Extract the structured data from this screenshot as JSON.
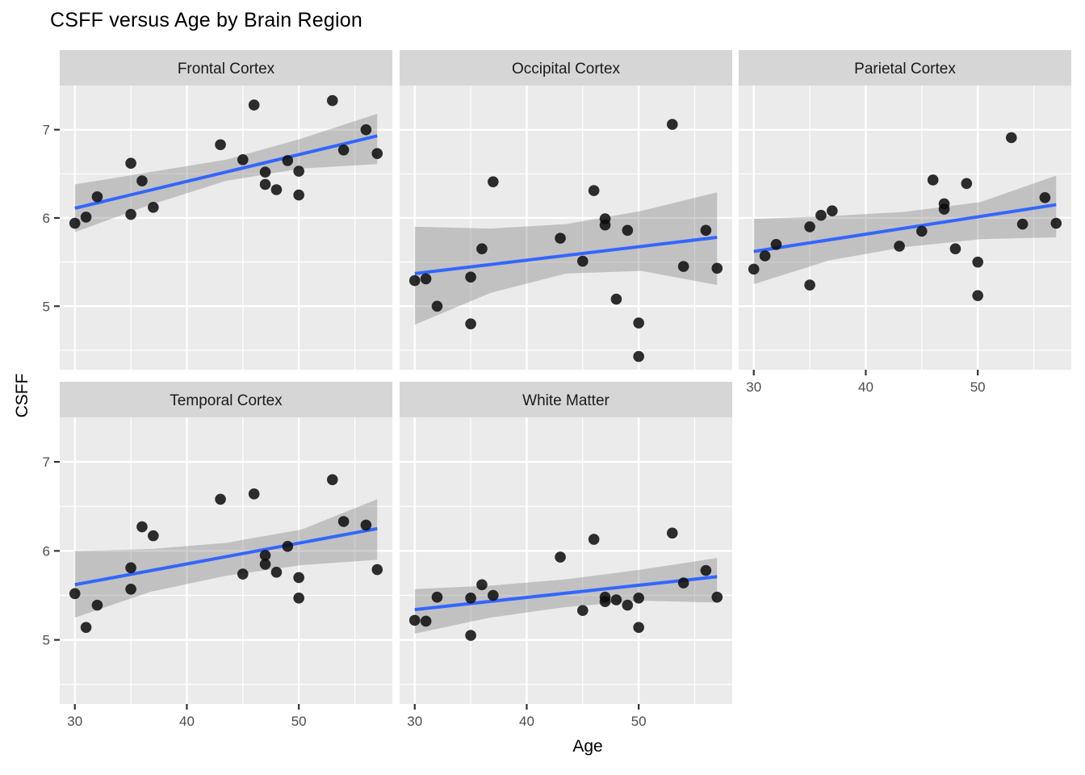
{
  "title": "CSFF versus Age by Brain Region",
  "chart_data": {
    "type": "scatter",
    "xlabel": "Age",
    "ylabel": "CSFF",
    "x_domain": [
      28.65,
      58.35
    ],
    "y_domain": [
      4.28,
      7.5
    ],
    "x_ticks": [
      30,
      40,
      50
    ],
    "y_ticks": [
      7,
      6,
      5
    ],
    "x_minor_ticks": [
      35,
      45,
      55
    ],
    "y_minor_ticks": [
      4.5,
      5.5,
      6.5
    ],
    "grid": true,
    "legend_position": "none",
    "colors": {
      "panel_bg": "#EBEBEB",
      "strip_bg": "#D6D6D6",
      "grid": "#FFFFFF",
      "point": "rgba(10,10,10,0.85)",
      "smooth_line": "#3366FF",
      "band_fill": "rgba(110,110,110,0.33)",
      "tick_text": "#4D4D4D",
      "tick_mark": "#333333",
      "strip_text": "#1A1A1A"
    },
    "facets": [
      {
        "label": "Frontal Cortex",
        "points": [
          [
            30,
            5.94
          ],
          [
            31,
            6.01
          ],
          [
            32,
            6.24
          ],
          [
            35,
            6.62
          ],
          [
            35,
            6.04
          ],
          [
            36,
            6.42
          ],
          [
            37,
            6.12
          ],
          [
            43,
            6.83
          ],
          [
            45,
            6.66
          ],
          [
            46,
            7.28
          ],
          [
            47,
            6.52
          ],
          [
            47,
            6.38
          ],
          [
            48,
            6.32
          ],
          [
            49,
            6.65
          ],
          [
            50,
            6.53
          ],
          [
            50,
            6.26
          ],
          [
            53,
            7.33
          ],
          [
            54,
            6.77
          ],
          [
            56,
            7.0
          ],
          [
            57,
            6.73
          ]
        ],
        "smooth_line": {
          "x1": 30,
          "y1": 6.11,
          "x2": 57,
          "y2": 6.93
        },
        "band": [
          [
            30,
            5.84,
            6.38
          ],
          [
            36.75,
            6.15,
            6.52
          ],
          [
            43.5,
            6.42,
            6.66
          ],
          [
            50.25,
            6.56,
            6.9
          ],
          [
            57,
            6.61,
            7.18
          ]
        ]
      },
      {
        "label": "Occipital Cortex",
        "points": [
          [
            30,
            5.29
          ],
          [
            31,
            5.31
          ],
          [
            32,
            5.0
          ],
          [
            35,
            5.33
          ],
          [
            35,
            4.8
          ],
          [
            36,
            5.65
          ],
          [
            37,
            6.41
          ],
          [
            43,
            5.77
          ],
          [
            45,
            5.51
          ],
          [
            46,
            6.31
          ],
          [
            47,
            5.99
          ],
          [
            47,
            5.92
          ],
          [
            48,
            5.08
          ],
          [
            49,
            5.86
          ],
          [
            50,
            4.81
          ],
          [
            50,
            4.43
          ],
          [
            53,
            7.06
          ],
          [
            54,
            5.45
          ],
          [
            56,
            5.86
          ],
          [
            57,
            5.43
          ]
        ],
        "smooth_line": {
          "x1": 30,
          "y1": 5.37,
          "x2": 57,
          "y2": 5.78
        },
        "band": [
          [
            30,
            4.79,
            5.9
          ],
          [
            36.75,
            5.15,
            5.88
          ],
          [
            43.5,
            5.37,
            5.93
          ],
          [
            50.25,
            5.4,
            6.08
          ],
          [
            57,
            5.24,
            6.29
          ]
        ]
      },
      {
        "label": "Parietal Cortex",
        "points": [
          [
            30,
            5.42
          ],
          [
            31,
            5.57
          ],
          [
            32,
            5.7
          ],
          [
            35,
            5.9
          ],
          [
            35,
            5.24
          ],
          [
            36,
            6.03
          ],
          [
            37,
            6.08
          ],
          [
            43,
            5.68
          ],
          [
            45,
            5.85
          ],
          [
            46,
            6.43
          ],
          [
            47,
            6.16
          ],
          [
            47,
            6.1
          ],
          [
            48,
            5.65
          ],
          [
            49,
            6.39
          ],
          [
            50,
            5.5
          ],
          [
            50,
            5.12
          ],
          [
            53,
            6.91
          ],
          [
            54,
            5.93
          ],
          [
            56,
            6.23
          ],
          [
            57,
            5.94
          ]
        ],
        "smooth_line": {
          "x1": 30,
          "y1": 5.62,
          "x2": 57,
          "y2": 6.15
        },
        "band": [
          [
            30,
            5.25,
            5.99
          ],
          [
            36.75,
            5.52,
            6.02
          ],
          [
            43.5,
            5.67,
            6.07
          ],
          [
            50.25,
            5.76,
            6.18
          ],
          [
            57,
            5.78,
            6.48
          ]
        ]
      },
      {
        "label": "Temporal Cortex",
        "points": [
          [
            30,
            5.52
          ],
          [
            31,
            5.14
          ],
          [
            32,
            5.39
          ],
          [
            35,
            5.81
          ],
          [
            35,
            5.57
          ],
          [
            36,
            6.27
          ],
          [
            37,
            6.17
          ],
          [
            43,
            6.58
          ],
          [
            45,
            5.74
          ],
          [
            46,
            6.64
          ],
          [
            47,
            5.95
          ],
          [
            47,
            5.85
          ],
          [
            48,
            5.76
          ],
          [
            49,
            6.05
          ],
          [
            50,
            5.7
          ],
          [
            50,
            5.47
          ],
          [
            53,
            6.8
          ],
          [
            54,
            6.33
          ],
          [
            56,
            6.29
          ],
          [
            57,
            5.79
          ]
        ],
        "smooth_line": {
          "x1": 30,
          "y1": 5.62,
          "x2": 57,
          "y2": 6.25
        },
        "band": [
          [
            30,
            5.25,
            6.0
          ],
          [
            36.75,
            5.54,
            6.02
          ],
          [
            43.5,
            5.72,
            6.09
          ],
          [
            50.25,
            5.84,
            6.24
          ],
          [
            57,
            5.9,
            6.58
          ]
        ]
      },
      {
        "label": "White Matter",
        "points": [
          [
            30,
            5.22
          ],
          [
            31,
            5.21
          ],
          [
            32,
            5.48
          ],
          [
            35,
            5.47
          ],
          [
            35,
            5.05
          ],
          [
            36,
            5.62
          ],
          [
            37,
            5.5
          ],
          [
            43,
            5.93
          ],
          [
            45,
            5.33
          ],
          [
            46,
            6.13
          ],
          [
            47,
            5.48
          ],
          [
            47,
            5.43
          ],
          [
            48,
            5.45
          ],
          [
            49,
            5.39
          ],
          [
            50,
            5.47
          ],
          [
            50,
            5.14
          ],
          [
            53,
            6.2
          ],
          [
            54,
            5.64
          ],
          [
            56,
            5.78
          ],
          [
            57,
            5.48
          ]
        ],
        "smooth_line": {
          "x1": 30,
          "y1": 5.34,
          "x2": 57,
          "y2": 5.71
        },
        "band": [
          [
            30,
            5.07,
            5.57
          ],
          [
            36.75,
            5.25,
            5.61
          ],
          [
            43.5,
            5.37,
            5.68
          ],
          [
            50.25,
            5.44,
            5.79
          ],
          [
            57,
            5.42,
            5.92
          ]
        ]
      }
    ]
  }
}
